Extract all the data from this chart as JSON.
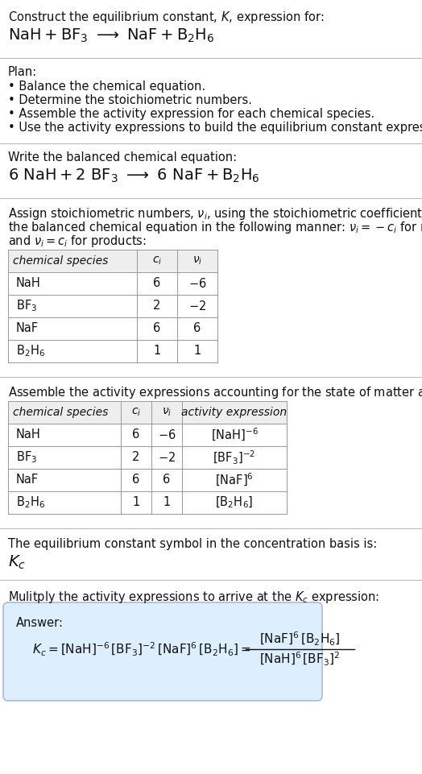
{
  "title_line1": "Construct the equilibrium constant, $K$, expression for:",
  "title_line2": "$\\mathrm{NaH} + \\mathrm{BF_3}\\  \\longrightarrow\\  \\mathrm{NaF} + \\mathrm{B_2H_6}$",
  "plan_header": "Plan:",
  "plan_bullets": [
    "• Balance the chemical equation.",
    "• Determine the stoichiometric numbers.",
    "• Assemble the activity expression for each chemical species.",
    "• Use the activity expressions to build the equilibrium constant expression."
  ],
  "balanced_header": "Write the balanced chemical equation:",
  "balanced_eq": "$6\\ \\mathrm{NaH} + 2\\ \\mathrm{BF_3}\\  \\longrightarrow\\  6\\ \\mathrm{NaF} + \\mathrm{B_2H_6}$",
  "stoich_header1": "Assign stoichiometric numbers, $\\nu_i$, using the stoichiometric coefficients, $c_i$, from",
  "stoich_header2": "the balanced chemical equation in the following manner: $\\nu_i = -c_i$ for reactants",
  "stoich_header3": "and $\\nu_i = c_i$ for products:",
  "table1_cols": [
    "chemical species",
    "$c_i$",
    "$\\nu_i$"
  ],
  "table1_rows": [
    [
      "NaH",
      "6",
      "$-6$"
    ],
    [
      "$\\mathrm{BF_3}$",
      "2",
      "$-2$"
    ],
    [
      "NaF",
      "6",
      "6"
    ],
    [
      "$\\mathrm{B_2H_6}$",
      "1",
      "1"
    ]
  ],
  "activity_header": "Assemble the activity expressions accounting for the state of matter and $\\nu_i$:",
  "table2_cols": [
    "chemical species",
    "$c_i$",
    "$\\nu_i$",
    "activity expression"
  ],
  "table2_rows": [
    [
      "NaH",
      "6",
      "$-6$",
      "$[\\mathrm{NaH}]^{-6}$"
    ],
    [
      "$\\mathrm{BF_3}$",
      "2",
      "$-2$",
      "$[\\mathrm{BF_3}]^{-2}$"
    ],
    [
      "NaF",
      "6",
      "6",
      "$[\\mathrm{NaF}]^{6}$"
    ],
    [
      "$\\mathrm{B_2H_6}$",
      "1",
      "1",
      "$[\\mathrm{B_2H_6}]$"
    ]
  ],
  "Kc_header": "The equilibrium constant symbol in the concentration basis is:",
  "Kc_symbol": "$K_c$",
  "multiply_header": "Mulitply the activity expressions to arrive at the $K_c$ expression:",
  "answer_label": "Answer:",
  "bg_color": "#ffffff",
  "table_header_bg": "#eeeeee",
  "table_row_bg": "#ffffff",
  "table_border": "#999999",
  "answer_box_bg": "#ddeeff",
  "answer_box_border": "#aabbdd",
  "text_color": "#111111",
  "separator_color": "#bbbbbb"
}
